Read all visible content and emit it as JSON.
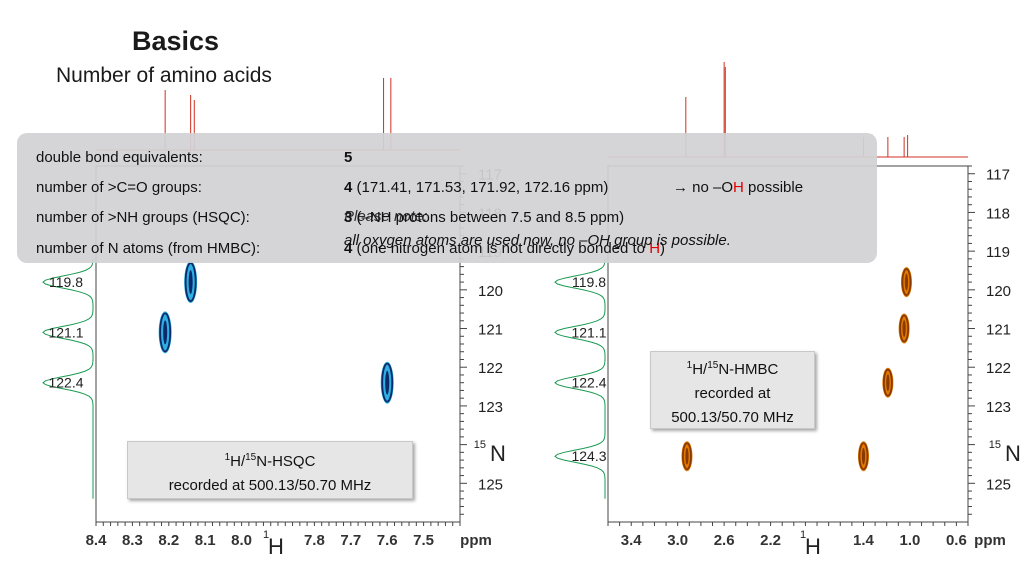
{
  "slide": {
    "title": "Basics",
    "subtitle": "Number of amino acids"
  },
  "overlay": {
    "rows": [
      {
        "label": "double bond equivalents:",
        "value": "5",
        "note": ""
      },
      {
        "label": "number of >C=O groups:",
        "value": "4",
        "note": "(171.41, 171.53, 171.92, 172.16 ppm)",
        "extra_pre": "→ no –O",
        "extra_h": "H",
        "extra_post": " possible"
      },
      {
        "label": "number of >NH groups (HSQC):",
        "value": "3",
        "note": "(–NH protons between 7.5 and 8.5 ppm)",
        "overlap": "Please note:"
      },
      {
        "label": "number of N atoms (from HMBC):",
        "value": "4",
        "note": "(one nitrogen atom is not directly bonded to ",
        "note_h": "H",
        "note_end": ")",
        "overlap": "all oxygen atoms are used now, no –OH group is possible."
      }
    ]
  },
  "hsqc_box": {
    "line1_pre": "H/",
    "line1_post": "N-HSQC",
    "sup1": "1",
    "sup2": "15",
    "line2": "recorded at 500.13/50.70 MHz"
  },
  "hmbc_box": {
    "line1_pre": "H/",
    "line1_post": "N-HMBC",
    "sup1": "1",
    "sup2": "15",
    "line2": "recorded at",
    "line3": "500.13/50.70 MHz"
  },
  "colors": {
    "hsqc_peak": "#0b2a6b",
    "hsqc_rim": "#2fb0e0",
    "hmbc_peak": "#8a3a00",
    "hmbc_rim": "#e07a00",
    "proj_1d": "#d03020",
    "proj_f1": "#1a9a50"
  },
  "chart_data": [
    {
      "type": "scatter",
      "name_hint": "HSQC",
      "xlabel": "H",
      "xlabel_sup": "1",
      "xunit": "ppm",
      "ylabel": "N",
      "ylabel_sup": "15",
      "xlim": [
        8.4,
        7.4
      ],
      "ylim": [
        116.8,
        126.0
      ],
      "x_ticks": [
        "8.4",
        "8.3",
        "8.2",
        "8.1",
        "8.0",
        "7.8",
        "7.7",
        "7.6",
        "7.5"
      ],
      "x_tick_values": [
        8.4,
        8.3,
        8.2,
        8.1,
        8.0,
        7.8,
        7.7,
        7.6,
        7.5
      ],
      "y_ticks": [
        "117",
        "118",
        "119",
        "120",
        "121",
        "122",
        "123",
        "125"
      ],
      "y_tick_values": [
        117,
        118,
        119,
        120,
        121,
        122,
        123,
        125
      ],
      "f1_labels": [
        "119.8",
        "121.1",
        "122.4"
      ],
      "f1_label_values": [
        119.8,
        121.1,
        122.4
      ],
      "points": [
        {
          "x": 8.14,
          "y": 119.8
        },
        {
          "x": 8.21,
          "y": 121.1
        },
        {
          "x": 7.6,
          "y": 122.4
        }
      ]
    },
    {
      "type": "scatter",
      "name_hint": "HMBC",
      "xlabel": "H",
      "xlabel_sup": "1",
      "xunit": "ppm",
      "ylabel": "N",
      "ylabel_sup": "15",
      "xlim": [
        3.6,
        0.5
      ],
      "ylim": [
        116.8,
        126.0
      ],
      "x_ticks": [
        "3.4",
        "3.0",
        "2.6",
        "2.2",
        "1.4",
        "1.0",
        "0.6"
      ],
      "x_tick_values": [
        3.4,
        3.0,
        2.6,
        2.2,
        1.4,
        1.0,
        0.6
      ],
      "y_ticks": [
        "117",
        "118",
        "119",
        "120",
        "121",
        "122",
        "123",
        "125"
      ],
      "y_tick_values": [
        117,
        118,
        119,
        120,
        121,
        122,
        123,
        125
      ],
      "f1_labels": [
        "119.8",
        "121.1",
        "122.4",
        "124.3"
      ],
      "f1_label_values": [
        119.8,
        121.1,
        122.4,
        124.3
      ],
      "points": [
        {
          "x": 1.03,
          "y": 119.8
        },
        {
          "x": 1.05,
          "y": 121.0
        },
        {
          "x": 1.19,
          "y": 122.4
        },
        {
          "x": 2.92,
          "y": 124.3
        },
        {
          "x": 1.4,
          "y": 124.3
        }
      ]
    }
  ]
}
